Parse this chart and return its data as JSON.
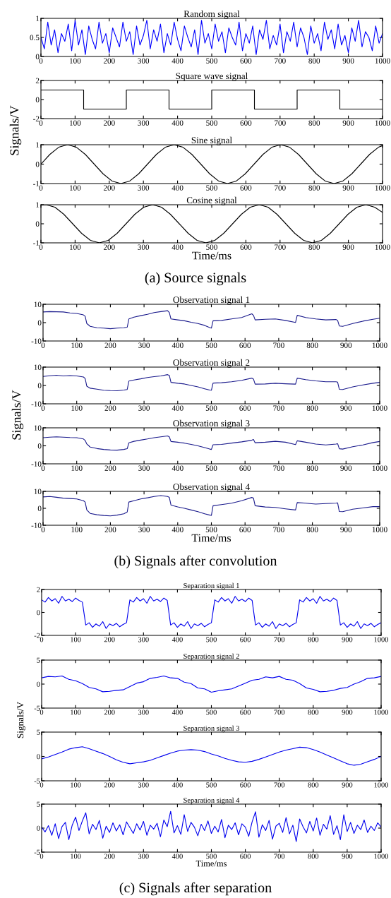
{
  "chart_data": [
    {
      "type": "line",
      "title": "Random signal",
      "xlim": [
        0,
        1000
      ],
      "xticks": [
        0,
        100,
        200,
        300,
        400,
        500,
        600,
        700,
        800,
        900,
        1000
      ],
      "ylim": [
        0,
        1
      ],
      "yticks": [
        0,
        0.5,
        1
      ],
      "x": [
        0,
        10,
        20,
        30,
        40,
        50,
        60,
        70,
        80,
        90,
        100,
        110,
        120,
        130,
        140,
        150,
        160,
        170,
        180,
        190,
        200,
        210,
        220,
        230,
        240,
        250,
        260,
        270,
        280,
        290,
        300,
        310,
        320,
        330,
        340,
        350,
        360,
        370,
        380,
        390,
        400,
        410,
        420,
        430,
        440,
        450,
        460,
        470,
        480,
        490,
        500,
        510,
        520,
        530,
        540,
        550,
        560,
        570,
        580,
        590,
        600,
        610,
        620,
        630,
        640,
        650,
        660,
        670,
        680,
        690,
        700,
        710,
        720,
        730,
        740,
        750,
        760,
        770,
        780,
        790,
        800,
        810,
        820,
        830,
        840,
        850,
        860,
        870,
        880,
        890,
        900,
        910,
        920,
        930,
        940,
        950,
        960,
        970,
        980,
        990,
        1000
      ],
      "series": [
        {
          "color": "#0000ff",
          "values": [
            0.5,
            0.2,
            0.9,
            0.3,
            0.7,
            0.1,
            0.6,
            0.4,
            0.85,
            0.15,
            0.95,
            0.3,
            0.7,
            0.05,
            0.8,
            0.45,
            0.2,
            0.9,
            0.35,
            0.6,
            0.1,
            0.75,
            0.5,
            0.25,
            0.9,
            0.4,
            0.65,
            0.05,
            0.8,
            0.3,
            0.55,
            0.95,
            0.2,
            0.7,
            0.4,
            0.85,
            0.1,
            0.6,
            0.3,
            0.9,
            0.45,
            0.15,
            0.8,
            0.5,
            0.25,
            0.7,
            0.05,
            0.95,
            0.35,
            0.6,
            0.2,
            0.85,
            0.4,
            0.65,
            0.1,
            0.75,
            0.5,
            0.3,
            0.9,
            0.15,
            0.6,
            0.35,
            0.8,
            0.05,
            0.7,
            0.45,
            0.95,
            0.2,
            0.55,
            0.3,
            0.85,
            0.1,
            0.65,
            0.4,
            0.9,
            0.25,
            0.75,
            0.5,
            0.05,
            0.8,
            0.35,
            0.6,
            0.15,
            0.9,
            0.45,
            0.7,
            0.2,
            0.85,
            0.3,
            0.55,
            0.1,
            0.75,
            0.4,
            0.95,
            0.25,
            0.65,
            0.5,
            0.15,
            0.8,
            0.35,
            0.6
          ]
        }
      ]
    },
    {
      "type": "line",
      "title": "Square wave signal",
      "ylabel": "Signals/V",
      "xlim": [
        0,
        1000
      ],
      "xticks": [
        0,
        100,
        200,
        300,
        400,
        500,
        600,
        700,
        800,
        900,
        1000
      ],
      "ylim": [
        -2,
        2
      ],
      "yticks": [
        -2,
        0,
        2
      ],
      "x": [
        0,
        125,
        125,
        250,
        250,
        375,
        375,
        500,
        500,
        625,
        625,
        750,
        750,
        875,
        875,
        1000
      ],
      "series": [
        {
          "color": "#000000",
          "values": [
            1,
            1,
            -1,
            -1,
            1,
            1,
            -1,
            -1,
            1,
            1,
            -1,
            -1,
            1,
            1,
            -1,
            -1
          ]
        }
      ]
    },
    {
      "type": "line",
      "title": "Sine signal",
      "xlim": [
        0,
        1000
      ],
      "xticks": [
        0,
        100,
        200,
        300,
        400,
        500,
        600,
        700,
        800,
        900,
        1000
      ],
      "ylim": [
        -1,
        1
      ],
      "yticks": [
        -1,
        0,
        1
      ],
      "x": [
        0,
        26,
        52,
        78,
        104,
        130,
        156,
        182,
        208,
        234,
        260,
        286,
        312,
        338,
        364,
        390,
        416,
        442,
        468,
        494,
        520,
        546,
        572,
        598,
        624,
        650,
        676,
        702,
        728,
        754,
        780,
        806,
        832,
        858,
        884,
        910,
        936,
        962,
        988,
        1000
      ],
      "series": [
        {
          "color": "#000000",
          "values": [
            0,
            0.5,
            0.87,
            1,
            0.87,
            0.5,
            0,
            -0.5,
            -0.87,
            -1,
            -0.87,
            -0.5,
            0,
            0.5,
            0.87,
            1,
            0.87,
            0.5,
            0,
            -0.5,
            -0.87,
            -1,
            -0.87,
            -0.5,
            0,
            0.5,
            0.87,
            1,
            0.87,
            0.5,
            0,
            -0.5,
            -0.87,
            -1,
            -0.87,
            -0.5,
            0,
            0.5,
            0.87,
            0.95
          ]
        }
      ]
    },
    {
      "type": "line",
      "title": "Cosine signal",
      "xlabel": "Time/ms",
      "annotations": [
        "(a) Source signals"
      ],
      "xlim": [
        0,
        1000
      ],
      "xticks": [
        0,
        100,
        200,
        300,
        400,
        500,
        600,
        700,
        800,
        900,
        1000
      ],
      "ylim": [
        -1,
        1
      ],
      "yticks": [
        -1,
        0,
        1
      ],
      "x": [
        0,
        15,
        41,
        67,
        93,
        119,
        145,
        171,
        197,
        223,
        249,
        275,
        301,
        327,
        353,
        379,
        405,
        431,
        457,
        483,
        509,
        535,
        561,
        587,
        613,
        639,
        665,
        691,
        717,
        743,
        769,
        795,
        821,
        847,
        873,
        899,
        925,
        951,
        977,
        1000
      ],
      "series": [
        {
          "color": "#000000",
          "values": [
            0.98,
            1,
            0.87,
            0.5,
            0,
            -0.5,
            -0.87,
            -1,
            -0.87,
            -0.5,
            0,
            0.5,
            0.87,
            1,
            0.87,
            0.5,
            0,
            -0.5,
            -0.87,
            -1,
            -0.87,
            -0.5,
            0,
            0.5,
            0.87,
            1,
            0.87,
            0.5,
            0,
            -0.5,
            -0.87,
            -1,
            -0.87,
            -0.5,
            0,
            0.5,
            0.87,
            1,
            0.87,
            0.6
          ]
        }
      ]
    },
    {
      "type": "line",
      "title": "Observation signal 1",
      "xlim": [
        0,
        1000
      ],
      "xticks": [
        0,
        100,
        200,
        300,
        400,
        500,
        600,
        700,
        800,
        900,
        1000
      ],
      "ylim": [
        -10,
        10
      ],
      "yticks": [
        -10,
        0,
        10
      ],
      "x": [
        0,
        20,
        40,
        60,
        80,
        100,
        120,
        125,
        130,
        140,
        160,
        180,
        200,
        220,
        240,
        250,
        255,
        270,
        290,
        310,
        330,
        350,
        370,
        375,
        380,
        400,
        420,
        440,
        460,
        480,
        495,
        500,
        505,
        530,
        560,
        590,
        620,
        625,
        630,
        660,
        690,
        720,
        750,
        755,
        780,
        810,
        840,
        870,
        875,
        880,
        890,
        920,
        950,
        980,
        1000
      ],
      "series": [
        {
          "color": "#1a1a8c",
          "values": [
            5.8,
            6.0,
            5.9,
            5.8,
            5.3,
            5.0,
            4.2,
            3.5,
            -0.5,
            -2.0,
            -2.8,
            -3.0,
            -3.3,
            -3.0,
            -2.8,
            -2.5,
            2.0,
            3.0,
            3.8,
            4.5,
            5.5,
            6.0,
            6.5,
            5.5,
            2.0,
            1.5,
            1.0,
            0.2,
            -0.5,
            -1.5,
            -2.7,
            -3.0,
            1.0,
            1.2,
            2.0,
            2.8,
            4.8,
            4.0,
            1.5,
            1.8,
            2.0,
            1.2,
            0.1,
            4.0,
            2.8,
            2.0,
            1.5,
            1.7,
            1.2,
            -1.8,
            -2.0,
            -0.5,
            0.8,
            1.8,
            2.4
          ]
        }
      ]
    },
    {
      "type": "line",
      "title": "Observation signal 2",
      "ylabel": "Signals/V",
      "xlim": [
        0,
        1000
      ],
      "xticks": [
        0,
        100,
        200,
        300,
        400,
        500,
        600,
        700,
        800,
        900,
        1000
      ],
      "ylim": [
        -10,
        10
      ],
      "yticks": [
        -10,
        0,
        10
      ],
      "x": [
        0,
        20,
        40,
        60,
        80,
        100,
        120,
        125,
        130,
        140,
        160,
        180,
        200,
        220,
        240,
        250,
        255,
        270,
        290,
        310,
        330,
        350,
        370,
        375,
        380,
        400,
        420,
        440,
        460,
        480,
        495,
        500,
        505,
        530,
        560,
        590,
        620,
        625,
        630,
        660,
        690,
        720,
        750,
        755,
        780,
        810,
        840,
        870,
        875,
        880,
        890,
        920,
        950,
        980,
        1000
      ],
      "series": [
        {
          "color": "#1a1a8c",
          "values": [
            4.9,
            5.3,
            5.6,
            5.2,
            5.4,
            5.2,
            4.6,
            3.8,
            -0.4,
            -1.5,
            -2.0,
            -2.6,
            -2.8,
            -2.9,
            -2.5,
            -2.2,
            2.4,
            3.0,
            3.6,
            4.3,
            4.8,
            5.2,
            5.9,
            5.5,
            1.7,
            1.2,
            0.8,
            0.0,
            -0.8,
            -1.8,
            -2.5,
            -2.6,
            1.3,
            1.5,
            2.0,
            2.8,
            4.0,
            3.5,
            0.7,
            0.8,
            1.2,
            0.9,
            0.7,
            4.0,
            3.2,
            2.5,
            2.0,
            2.0,
            1.8,
            -2.1,
            -2.2,
            -0.8,
            0.3,
            1.2,
            1.7
          ]
        }
      ]
    },
    {
      "type": "line",
      "title": "Observation signal 3",
      "xlim": [
        0,
        1000
      ],
      "xticks": [
        0,
        100,
        200,
        300,
        400,
        500,
        600,
        700,
        800,
        900,
        1000
      ],
      "ylim": [
        -10,
        10
      ],
      "yticks": [
        -10,
        0,
        10
      ],
      "x": [
        0,
        20,
        40,
        60,
        80,
        100,
        120,
        125,
        130,
        140,
        160,
        180,
        200,
        220,
        240,
        250,
        255,
        270,
        290,
        310,
        330,
        350,
        370,
        375,
        380,
        400,
        420,
        440,
        460,
        480,
        495,
        500,
        505,
        530,
        560,
        590,
        620,
        625,
        630,
        660,
        690,
        720,
        750,
        755,
        780,
        810,
        840,
        870,
        875,
        880,
        890,
        920,
        950,
        980,
        1000
      ],
      "series": [
        {
          "color": "#1a1a8c",
          "values": [
            4.5,
            4.8,
            5.0,
            4.8,
            4.6,
            4.5,
            3.8,
            3.0,
            1.0,
            -0.7,
            -1.5,
            -2.0,
            -2.3,
            -2.4,
            -2.0,
            -1.6,
            1.7,
            2.5,
            3.2,
            3.8,
            4.5,
            5.0,
            5.5,
            5.0,
            2.4,
            2.0,
            1.5,
            0.8,
            0.0,
            -1.0,
            -1.8,
            -2.0,
            0.6,
            0.8,
            1.5,
            2.2,
            3.1,
            3.5,
            1.7,
            2.0,
            2.5,
            2.0,
            0.7,
            2.8,
            2.0,
            1.0,
            0.5,
            1.0,
            1.2,
            -1.6,
            -1.8,
            -0.5,
            0.5,
            1.8,
            2.4
          ]
        }
      ]
    },
    {
      "type": "line",
      "title": "Observation signal 4",
      "xlabel": "Time/ms",
      "annotations": [
        "(b) Signals after convolution"
      ],
      "xlim": [
        0,
        1000
      ],
      "xticks": [
        0,
        100,
        200,
        300,
        400,
        500,
        600,
        700,
        800,
        900,
        1000
      ],
      "ylim": [
        -10,
        10
      ],
      "yticks": [
        -10,
        0,
        10
      ],
      "x": [
        0,
        20,
        40,
        60,
        80,
        100,
        120,
        125,
        130,
        140,
        160,
        180,
        200,
        220,
        240,
        250,
        255,
        270,
        290,
        310,
        330,
        350,
        370,
        375,
        380,
        400,
        420,
        440,
        460,
        480,
        495,
        500,
        505,
        530,
        560,
        590,
        620,
        625,
        630,
        660,
        690,
        720,
        750,
        755,
        780,
        810,
        840,
        870,
        875,
        880,
        890,
        920,
        950,
        980,
        1000
      ],
      "series": [
        {
          "color": "#1a1a8c",
          "values": [
            6.7,
            7.0,
            6.5,
            6.0,
            5.8,
            5.5,
            4.5,
            3.7,
            -1.0,
            -3.0,
            -3.8,
            -4.2,
            -4.5,
            -4.0,
            -3.2,
            -2.2,
            3.7,
            4.5,
            5.5,
            6.2,
            7.0,
            7.5,
            7.0,
            6.5,
            1.9,
            0.8,
            0.0,
            -1.0,
            -2.0,
            -3.2,
            -4.0,
            -4.2,
            1.5,
            2.2,
            3.0,
            4.5,
            6.4,
            6.0,
            1.5,
            0.8,
            0.5,
            -0.3,
            -1.0,
            3.4,
            3.0,
            2.5,
            2.8,
            3.0,
            3.2,
            -1.9,
            -2.0,
            -0.5,
            0.2,
            1.0,
            1.0
          ]
        }
      ]
    },
    {
      "type": "line",
      "title": "Separation signal 1",
      "xlim": [
        0,
        1000
      ],
      "xticks": [
        0,
        100,
        200,
        300,
        400,
        500,
        600,
        700,
        800,
        900,
        1000
      ],
      "ylim": [
        -2,
        2
      ],
      "yticks": [
        -2,
        0,
        2
      ],
      "x": [
        0,
        10,
        20,
        30,
        40,
        50,
        60,
        70,
        80,
        90,
        100,
        110,
        120,
        130,
        140,
        150,
        160,
        170,
        180,
        190,
        200,
        210,
        220,
        230,
        240,
        250,
        260,
        270,
        280,
        290,
        300,
        310,
        320,
        330,
        340,
        350,
        360,
        370,
        380,
        390,
        400,
        410,
        420,
        430,
        440,
        450,
        460,
        470,
        480,
        490,
        500,
        510,
        520,
        530,
        540,
        550,
        560,
        570,
        580,
        590,
        600,
        610,
        620,
        630,
        640,
        650,
        660,
        670,
        680,
        690,
        700,
        710,
        720,
        730,
        740,
        750,
        760,
        770,
        780,
        790,
        800,
        810,
        820,
        830,
        840,
        850,
        860,
        870,
        880,
        890,
        900,
        910,
        920,
        930,
        940,
        950,
        960,
        970,
        980,
        990,
        1000
      ],
      "series": [
        {
          "color": "#0000ee",
          "values": [
            1.1,
            0.9,
            1.3,
            1.0,
            1.2,
            0.8,
            1.4,
            1.0,
            1.15,
            0.95,
            1.25,
            1.05,
            0.9,
            -1.1,
            -0.9,
            -1.3,
            -1.0,
            -1.2,
            -0.8,
            -1.4,
            -1.0,
            -1.15,
            -0.95,
            -1.25,
            -1.05,
            -0.9,
            1.1,
            0.9,
            1.3,
            1.0,
            1.2,
            0.8,
            1.4,
            1.0,
            1.15,
            0.95,
            1.25,
            1.05,
            -1.1,
            -0.9,
            -1.3,
            -1.0,
            -1.2,
            -0.8,
            -1.4,
            -1.0,
            -1.15,
            -0.95,
            -1.25,
            -1.05,
            -0.9,
            1.1,
            0.9,
            1.3,
            1.0,
            1.2,
            0.8,
            1.4,
            1.0,
            1.15,
            0.95,
            1.25,
            1.05,
            -1.1,
            -0.9,
            -1.3,
            -1.0,
            -1.2,
            -0.8,
            -1.4,
            -1.0,
            -1.15,
            -0.95,
            -1.25,
            -1.05,
            -0.9,
            1.1,
            0.9,
            1.3,
            1.0,
            1.2,
            0.8,
            1.4,
            1.0,
            1.15,
            0.95,
            1.25,
            1.05,
            -1.1,
            -0.9,
            -1.3,
            -1.0,
            -1.2,
            -0.8,
            -1.4,
            -1.0,
            -1.15,
            -0.95,
            -1.25,
            -1.05,
            -0.9
          ]
        }
      ]
    },
    {
      "type": "line",
      "title": "Separation signal 2",
      "ylabel": "Signals/V",
      "xlim": [
        0,
        1000
      ],
      "xticks": [
        0,
        100,
        200,
        300,
        400,
        500,
        600,
        700,
        800,
        900,
        1000
      ],
      "ylim": [
        -5,
        5
      ],
      "yticks": [
        -5,
        0,
        5
      ],
      "x": [
        0,
        20,
        40,
        60,
        80,
        100,
        120,
        140,
        160,
        180,
        200,
        220,
        240,
        260,
        280,
        300,
        320,
        340,
        360,
        380,
        400,
        420,
        440,
        460,
        480,
        500,
        520,
        540,
        560,
        580,
        600,
        620,
        640,
        660,
        680,
        700,
        720,
        740,
        760,
        780,
        800,
        820,
        840,
        860,
        880,
        900,
        920,
        940,
        960,
        980,
        1000
      ],
      "series": [
        {
          "color": "#0000ee",
          "values": [
            1.3,
            1.6,
            1.5,
            1.7,
            1.0,
            0.7,
            0.1,
            -0.7,
            -1.0,
            -1.6,
            -1.5,
            -1.3,
            -1.2,
            -0.5,
            0.2,
            0.5,
            1.2,
            1.4,
            1.7,
            1.3,
            1.2,
            0.4,
            0.1,
            -0.8,
            -1.0,
            -1.7,
            -1.4,
            -1.2,
            -1.0,
            -0.4,
            0.2,
            0.8,
            1.0,
            1.5,
            1.3,
            1.6,
            1.0,
            0.8,
            0.1,
            -0.8,
            -1.1,
            -1.6,
            -1.5,
            -1.3,
            -0.9,
            -0.7,
            0,
            0.5,
            1.2,
            1.3,
            1.6
          ]
        }
      ]
    },
    {
      "type": "line",
      "title": "Separation signal 3",
      "xlim": [
        0,
        1000
      ],
      "xticks": [
        0,
        100,
        200,
        300,
        400,
        500,
        600,
        700,
        800,
        900,
        1000
      ],
      "ylim": [
        -5,
        5
      ],
      "yticks": [
        -5,
        0,
        5
      ],
      "x": [
        0,
        20,
        40,
        60,
        80,
        100,
        120,
        140,
        160,
        180,
        200,
        220,
        240,
        260,
        280,
        300,
        320,
        340,
        360,
        380,
        400,
        420,
        440,
        460,
        480,
        500,
        520,
        540,
        560,
        580,
        600,
        620,
        640,
        660,
        680,
        700,
        720,
        740,
        760,
        780,
        800,
        820,
        840,
        860,
        880,
        900,
        920,
        940,
        960,
        980,
        1000
      ],
      "series": [
        {
          "color": "#0000ee",
          "values": [
            -0.5,
            -0.1,
            0.4,
            0.9,
            1.5,
            1.8,
            2.0,
            1.6,
            1.1,
            0.6,
            0.0,
            -0.7,
            -1.2,
            -1.5,
            -1.3,
            -1.1,
            -0.8,
            -0.3,
            0.2,
            0.7,
            1.1,
            1.3,
            1.4,
            1.3,
            1.0,
            0.5,
            0.1,
            -0.4,
            -0.8,
            -1.1,
            -1.2,
            -1.0,
            -0.6,
            -0.1,
            0.4,
            0.9,
            1.3,
            1.6,
            1.9,
            1.8,
            1.4,
            0.9,
            0.3,
            -0.3,
            -0.9,
            -1.5,
            -1.8,
            -1.6,
            -1.1,
            -0.6,
            0.0
          ]
        }
      ]
    },
    {
      "type": "line",
      "title": "Separation signal 4",
      "xlabel": "Time/ms",
      "annotations": [
        "(c) Signals after separation"
      ],
      "xlim": [
        0,
        1000
      ],
      "xticks": [
        0,
        100,
        200,
        300,
        400,
        500,
        600,
        700,
        800,
        900,
        1000
      ],
      "ylim": [
        -5,
        5
      ],
      "yticks": [
        -5,
        0,
        5
      ],
      "x": [
        0,
        10,
        20,
        30,
        40,
        50,
        60,
        70,
        80,
        90,
        100,
        110,
        120,
        130,
        140,
        150,
        160,
        170,
        180,
        190,
        200,
        210,
        220,
        230,
        240,
        250,
        260,
        270,
        280,
        290,
        300,
        310,
        320,
        330,
        340,
        350,
        360,
        370,
        380,
        390,
        400,
        410,
        420,
        430,
        440,
        450,
        460,
        470,
        480,
        490,
        500,
        510,
        520,
        530,
        540,
        550,
        560,
        570,
        580,
        590,
        600,
        610,
        620,
        630,
        640,
        650,
        660,
        670,
        680,
        690,
        700,
        710,
        720,
        730,
        740,
        750,
        760,
        770,
        780,
        790,
        800,
        810,
        820,
        830,
        840,
        850,
        860,
        870,
        880,
        890,
        900,
        910,
        920,
        930,
        940,
        950,
        960,
        970,
        980,
        990,
        1000
      ],
      "series": [
        {
          "color": "#0000ee",
          "values": [
            0.2,
            -0.8,
            0.5,
            -1.5,
            0.9,
            -2.2,
            0.3,
            1.2,
            -2.4,
            0.6,
            2.3,
            -0.5,
            1.5,
            3.2,
            -1.2,
            0.8,
            -0.3,
            1.6,
            -2.1,
            0.4,
            -0.9,
            1.1,
            -0.6,
            0.7,
            -1.4,
            1.3,
            0.1,
            -1.1,
            0.9,
            -0.4,
            1.4,
            -1.5,
            0.6,
            -0.2,
            1.0,
            -1.8,
            1.7,
            0.3,
            3.5,
            -1.0,
            0.5,
            -1.3,
            2.8,
            -0.7,
            1.2,
            0.2,
            -1.6,
            0.8,
            -0.5,
            1.5,
            -1.1,
            0.4,
            -0.8,
            1.8,
            -2.0,
            0.6,
            -0.3,
            1.1,
            -1.4,
            0.9,
            0.2,
            -1.7,
            1.3,
            3.4,
            -1.9,
            0.7,
            -0.5,
            1.6,
            -2.3,
            0.4,
            1.0,
            -0.9,
            2.2,
            -1.2,
            0.6,
            -2.8,
            1.9,
            0.3,
            -1.0,
            1.4,
            -0.6,
            2.1,
            -1.5,
            0.8,
            -0.2,
            2.6,
            -1.3,
            0.5,
            -2.4,
            2.8,
            -0.7,
            1.2,
            -1.1,
            0.6,
            -0.3,
            1.7,
            -0.9,
            0.4,
            -0.5,
            1.1,
            0.2
          ]
        }
      ]
    }
  ]
}
